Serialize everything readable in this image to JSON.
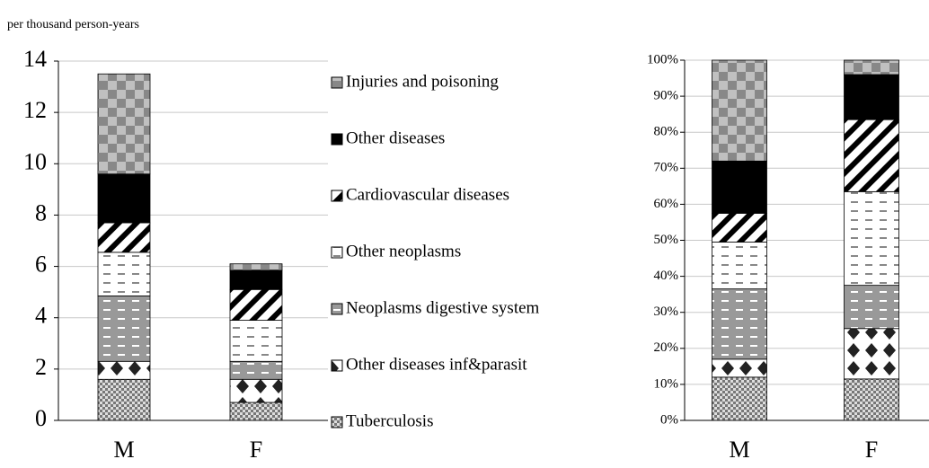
{
  "chart_data": [
    {
      "type": "stacked-bar",
      "y_label": "per thousand person-years",
      "categories": [
        "M",
        "F"
      ],
      "series": [
        {
          "name": "Tuberculosis",
          "color": "#ffffff",
          "values": [
            1.6,
            0.7
          ]
        },
        {
          "name": "Other diseases inf&parasit",
          "color": "#ffffff",
          "values": [
            0.7,
            0.9
          ]
        },
        {
          "name": "Neoplasms digestive system",
          "color": "#999999",
          "values": [
            2.55,
            0.7
          ]
        },
        {
          "name": "Other neoplasms",
          "color": "#ffffff",
          "values": [
            1.7,
            1.6
          ]
        },
        {
          "name": "Cardiovascular diseases",
          "color": "#ffffff",
          "values": [
            1.15,
            1.2
          ]
        },
        {
          "name": "Other diseases",
          "color": "#000000",
          "values": [
            1.9,
            0.75
          ]
        },
        {
          "name": "Injuries and poisoning",
          "color": "#c0c0c0",
          "values": [
            3.9,
            0.25
          ]
        }
      ],
      "ylim": [
        0,
        14
      ],
      "yticks": [
        0,
        2,
        4,
        6,
        8,
        10,
        12,
        14
      ],
      "grid": true,
      "legend": "right"
    },
    {
      "type": "stacked-bar",
      "categories": [
        "M",
        "F"
      ],
      "series": [
        {
          "color": "#999999",
          "values": [
            12,
            11.5
          ]
        },
        {
          "color": "#ffffff",
          "values": [
            5,
            14
          ]
        },
        {
          "color": "#999999",
          "values": [
            19.5,
            12
          ]
        },
        {
          "color": "#ffffff",
          "values": [
            13,
            26
          ]
        },
        {
          "color": "#ffffff",
          "values": [
            8,
            20
          ]
        },
        {
          "color": "#000000",
          "values": [
            14.5,
            12.5
          ]
        },
        {
          "color": "#c0c0c0",
          "values": [
            28,
            4
          ]
        }
      ],
      "ylim": [
        0,
        100
      ],
      "yticks": [
        {
          "value": 0,
          "label": "0%"
        },
        {
          "value": 10,
          "label": "10%"
        },
        {
          "value": 20,
          "label": "20%"
        },
        {
          "value": 30,
          "label": "30%"
        },
        {
          "value": 40,
          "label": "40%"
        },
        {
          "value": 50,
          "label": "50%"
        },
        {
          "value": 60,
          "label": "60%"
        },
        {
          "value": 70,
          "label": "70%"
        },
        {
          "value": 80,
          "label": "80%"
        },
        {
          "value": 90,
          "label": "90%"
        },
        {
          "value": 100,
          "label": "100%"
        }
      ],
      "grid": true
    }
  ]
}
